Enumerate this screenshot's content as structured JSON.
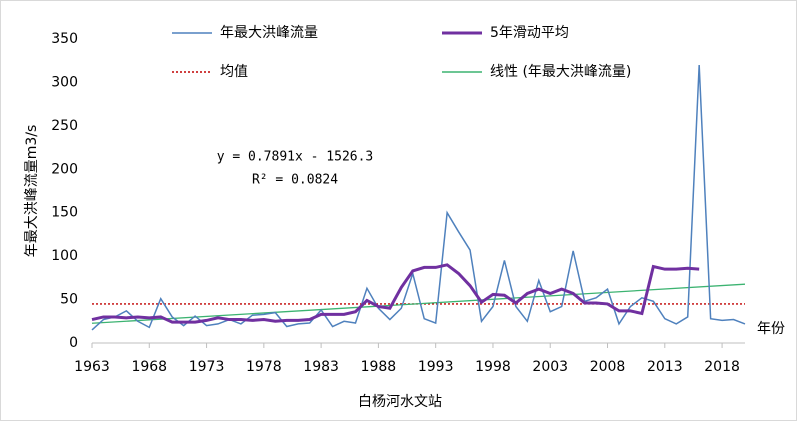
{
  "chart_data": {
    "type": "line",
    "ylabel": "年最大洪峰流量m3/s",
    "xlabel": "白杨河水文站",
    "x_unit_label": "年份",
    "annotations": [
      "y = 0.7891x - 1526.3",
      "R² = 0.0824"
    ],
    "x": [
      1963,
      1964,
      1965,
      1966,
      1967,
      1968,
      1969,
      1970,
      1971,
      1972,
      1973,
      1974,
      1975,
      1976,
      1977,
      1978,
      1979,
      1980,
      1981,
      1982,
      1983,
      1984,
      1985,
      1986,
      1987,
      1988,
      1989,
      1990,
      1991,
      1992,
      1993,
      1994,
      1995,
      1996,
      1997,
      1998,
      1999,
      2000,
      2001,
      2002,
      2003,
      2004,
      2005,
      2006,
      2007,
      2008,
      2009,
      2010,
      2011,
      2012,
      2013,
      2014,
      2015,
      2016,
      2017,
      2018,
      2019,
      2020
    ],
    "series": [
      {
        "name": "年最大洪峰流量",
        "color": "#4f81bd",
        "values": [
          15,
          27,
          30,
          37,
          25,
          18,
          51,
          30,
          20,
          31,
          20,
          22,
          27,
          22,
          32,
          33,
          35,
          19,
          22,
          23,
          38,
          19,
          25,
          23,
          63,
          40,
          27,
          40,
          80,
          28,
          23,
          150,
          128,
          107,
          25,
          42,
          95,
          42,
          25,
          72,
          36,
          42,
          106,
          48,
          52,
          62,
          22,
          42,
          52,
          48,
          28,
          22,
          30,
          320,
          28,
          26,
          27,
          22
        ]
      },
      {
        "name": "5年滑动平均",
        "color": "#7030a0",
        "values": [
          27,
          30,
          30,
          29,
          30,
          29,
          30,
          24,
          24,
          24,
          26,
          29,
          27,
          27,
          26,
          27,
          25,
          26,
          26,
          27,
          33,
          33,
          33,
          36,
          49,
          42,
          40,
          64,
          83,
          87,
          87,
          90,
          80,
          66,
          47,
          56,
          55,
          46,
          57,
          62,
          57,
          62,
          57,
          46,
          46,
          45,
          37,
          37,
          34,
          88,
          85,
          85,
          86,
          85,
          null,
          null,
          null,
          null
        ]
      },
      {
        "name": "均值",
        "color": "#c00000",
        "dashed": true,
        "x": [
          1963,
          2020
        ],
        "values": [
          45,
          45
        ]
      },
      {
        "name": "线性 (年最大洪峰流量)",
        "color": "#3cb371",
        "x": [
          1963,
          2020
        ],
        "values": [
          22.7,
          67.7
        ]
      }
    ],
    "xlim": [
      1963,
      2020
    ],
    "xticks": [
      1963,
      1968,
      1973,
      1978,
      1983,
      1988,
      1993,
      1998,
      2003,
      2008,
      2013,
      2018
    ],
    "ylim": [
      0,
      350
    ],
    "yticks": [
      0,
      50,
      100,
      150,
      200,
      250,
      300,
      350
    ]
  }
}
